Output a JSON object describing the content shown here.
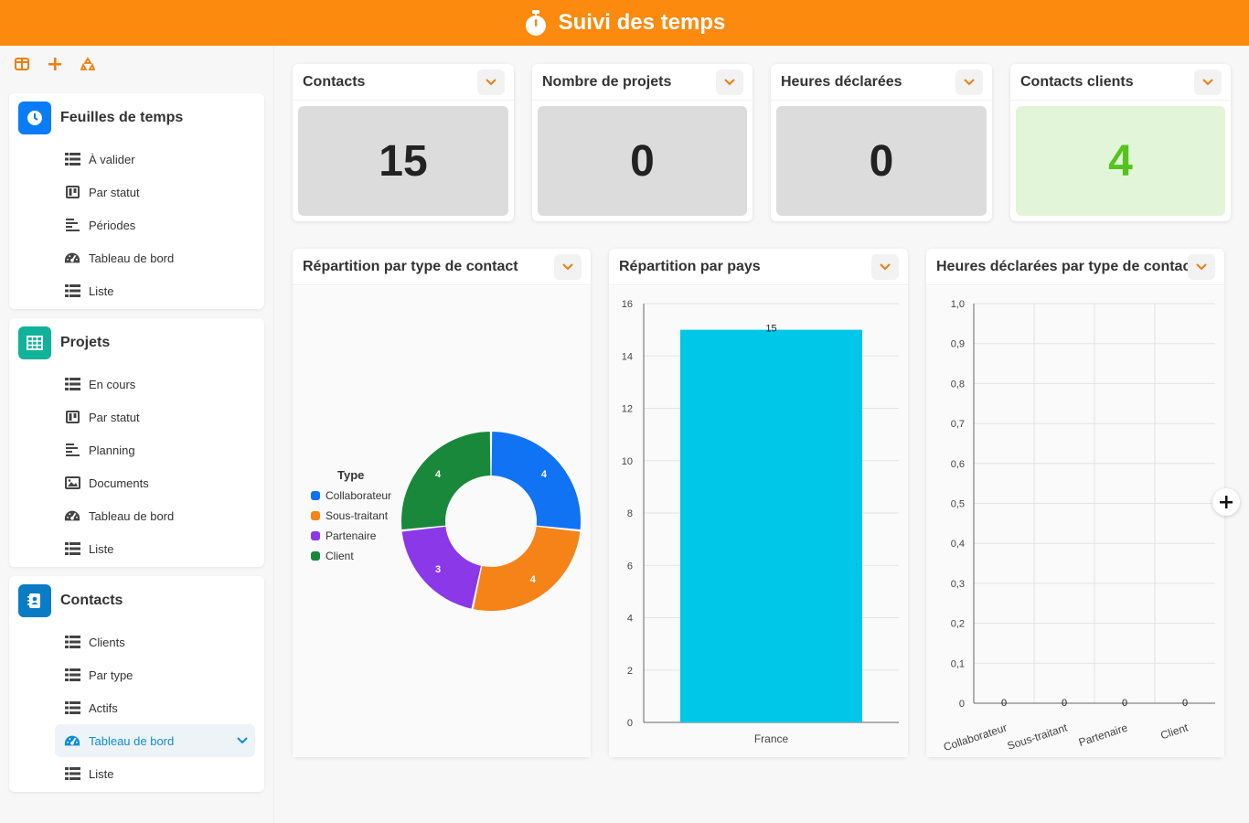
{
  "app": {
    "title": "Suivi des temps",
    "brand_color": "#fb8a0e"
  },
  "toolbar": {
    "icons": [
      "columns-icon",
      "plus-icon",
      "recycle-icon"
    ]
  },
  "sidebar": {
    "sections": [
      {
        "title": "Feuilles de temps",
        "icon": "clock-icon",
        "color": "#0a7cf5",
        "items": [
          {
            "label": "À valider",
            "icon": "table-icon"
          },
          {
            "label": "Par statut",
            "icon": "kanban-icon"
          },
          {
            "label": "Périodes",
            "icon": "gantt-icon"
          },
          {
            "label": "Tableau de bord",
            "icon": "dashboard-icon"
          },
          {
            "label": "Liste",
            "icon": "table-icon"
          }
        ]
      },
      {
        "title": "Projets",
        "icon": "grid-icon",
        "color": "#10b29a",
        "items": [
          {
            "label": "En cours",
            "icon": "table-icon"
          },
          {
            "label": "Par statut",
            "icon": "kanban-icon"
          },
          {
            "label": "Planning",
            "icon": "gantt-icon"
          },
          {
            "label": "Documents",
            "icon": "image-icon"
          },
          {
            "label": "Tableau de bord",
            "icon": "dashboard-icon"
          },
          {
            "label": "Liste",
            "icon": "table-icon"
          }
        ]
      },
      {
        "title": "Contacts",
        "icon": "contact-book-icon",
        "color": "#0a7cc6",
        "items": [
          {
            "label": "Clients",
            "icon": "table-icon"
          },
          {
            "label": "Par type",
            "icon": "table-icon"
          },
          {
            "label": "Actifs",
            "icon": "table-icon"
          },
          {
            "label": "Tableau de bord",
            "icon": "dashboard-icon",
            "active": true
          },
          {
            "label": "Liste",
            "icon": "table-icon"
          }
        ]
      }
    ]
  },
  "kpis": [
    {
      "title": "Contacts",
      "value": "15",
      "style": "gray"
    },
    {
      "title": "Nombre de projets",
      "value": "0",
      "style": "gray"
    },
    {
      "title": "Heures déclarées",
      "value": "0",
      "style": "gray"
    },
    {
      "title": "Contacts clients",
      "value": "4",
      "style": "green"
    }
  ],
  "charts": {
    "donut_title": "Répartition par type de contact",
    "bar_title": "Répartition par pays",
    "hours_title": "Heures déclarées par type de contact"
  },
  "chart_data": [
    {
      "type": "pie",
      "donut": true,
      "legend_title": "Type",
      "legend_position": "left",
      "categories": [
        "Collaborateur",
        "Sous-traitant",
        "Partenaire",
        "Client"
      ],
      "values": [
        4,
        4,
        3,
        4
      ],
      "colors": [
        "#1073f4",
        "#f58318",
        "#8b38e8",
        "#19883a"
      ]
    },
    {
      "type": "bar",
      "categories": [
        "France"
      ],
      "values": [
        15
      ],
      "ylim": [
        0,
        16
      ],
      "yticks": [
        0,
        2,
        4,
        6,
        8,
        10,
        12,
        14,
        16
      ],
      "color": "#00c6e8",
      "data_labels": true,
      "grid": true
    },
    {
      "type": "bar",
      "categories": [
        "Collaborateur",
        "Sous-traitant",
        "Partenaire",
        "Client"
      ],
      "values": [
        0,
        0,
        0,
        0
      ],
      "ylim": [
        0,
        1
      ],
      "yticks": [
        "0",
        "0,1",
        "0,2",
        "0,3",
        "0,4",
        "0,5",
        "0,6",
        "0,7",
        "0,8",
        "0,9",
        "1,0"
      ],
      "data_labels": true,
      "grid": true
    }
  ]
}
